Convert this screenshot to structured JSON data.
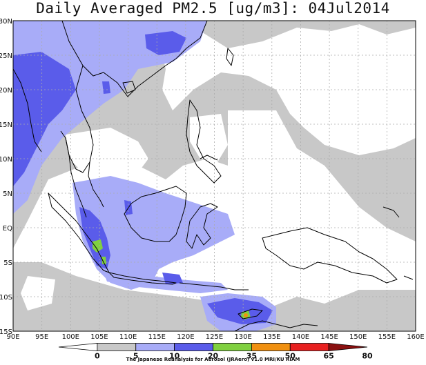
{
  "title": "Daily Averaged PM2.5 [ug/m3]: 04Jul2014",
  "credit": "The Japanese Reanalysis for Aerosol (JRAero) v1.0 MRI/KU RIAM",
  "map": {
    "lon_range": [
      90,
      160
    ],
    "lat_range": [
      -15,
      30
    ],
    "lon_ticks": [
      "90E",
      "95E",
      "100E",
      "105E",
      "110E",
      "115E",
      "120E",
      "125E",
      "130E",
      "135E",
      "140E",
      "145E",
      "150E",
      "155E",
      "160E"
    ],
    "lat_ticks": [
      "30N",
      "25N",
      "20N",
      "15N",
      "10N",
      "5N",
      "EQ",
      "5S",
      "10S",
      "15S"
    ],
    "grid": true
  },
  "legend": {
    "labels": [
      "0",
      "5",
      "10",
      "20",
      "35",
      "50",
      "65",
      "80"
    ],
    "colors": [
      "#ffffff",
      "#c8c8c8",
      "#a8acf8",
      "#5a5cea",
      "#80d040",
      "#f09010",
      "#e82020",
      "#8a1010"
    ]
  }
}
